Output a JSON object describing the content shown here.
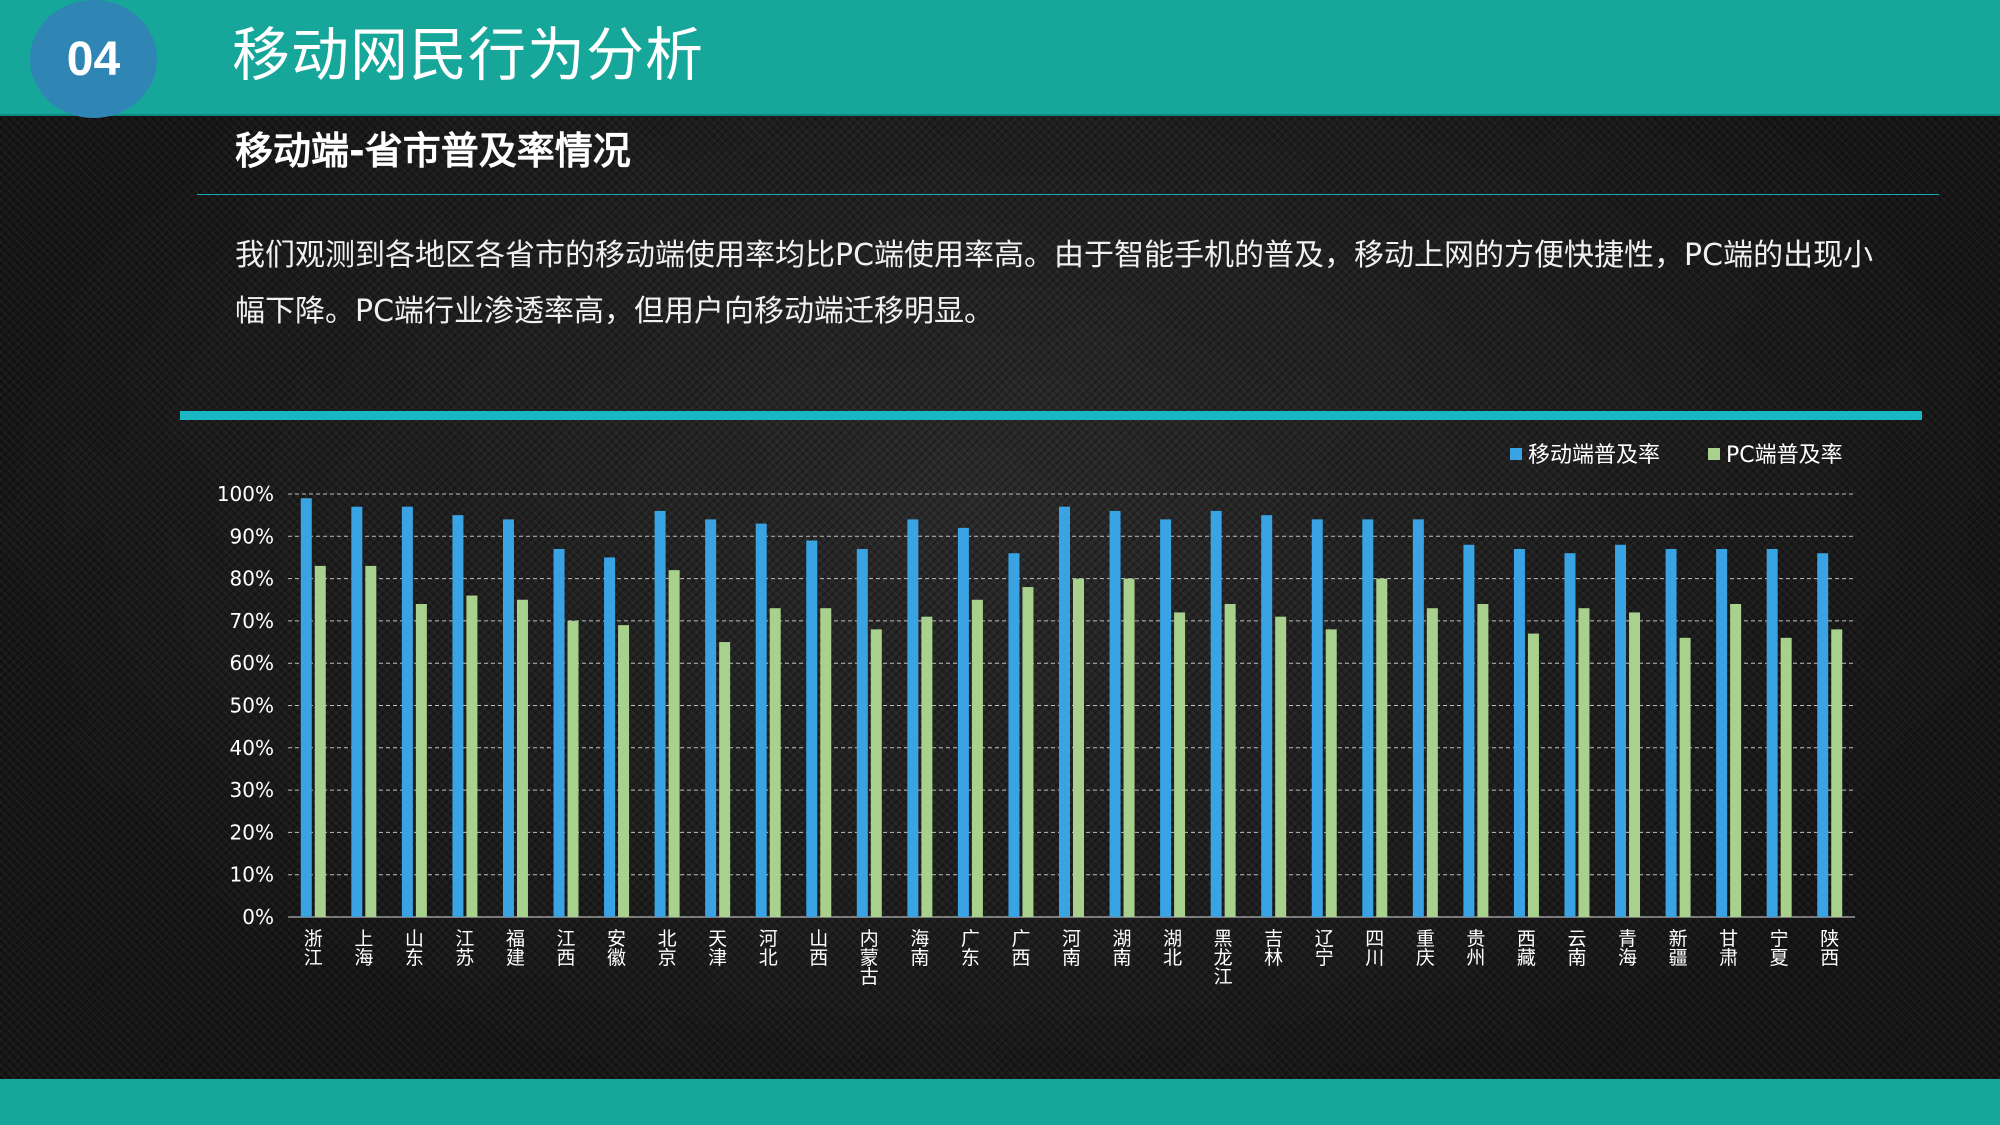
{
  "header": {
    "section_number": "04",
    "title": "移动网民行为分析"
  },
  "subtitle": "移动端-省市普及率情况",
  "description": "我们观测到各地区各省市的移动端使用率均比PC端使用率高。由于智能手机的普及，移动上网的方便快捷性，PC端的出现小幅下降。PC端行业渗透率高，但用户向移动端迁移明显。",
  "colors": {
    "brand_teal": "#16a69a",
    "badge_blue": "#2f86b4",
    "accent_cyan": "#19b6c3",
    "mobile_series": "#3aa3e3",
    "pc_series": "#a9d18e"
  },
  "chart_data": {
    "type": "bar",
    "categories": [
      "浙江",
      "上海",
      "山东",
      "江苏",
      "福建",
      "江西",
      "安徽",
      "北京",
      "天津",
      "河北",
      "山西",
      "内蒙古",
      "海南",
      "广东",
      "广西",
      "河南",
      "湖南",
      "湖北",
      "黑龙江",
      "吉林",
      "辽宁",
      "四川",
      "重庆",
      "贵州",
      "西藏",
      "云南",
      "青海",
      "新疆",
      "甘肃",
      "宁夏",
      "陕西"
    ],
    "series": [
      {
        "name": "移动端普及率",
        "color": "#3aa3e3",
        "values": [
          99,
          97,
          97,
          95,
          94,
          87,
          85,
          96,
          94,
          93,
          89,
          87,
          94,
          92,
          86,
          97,
          96,
          94,
          96,
          95,
          94,
          94,
          94,
          88,
          87,
          86,
          88,
          87,
          87,
          87,
          86
        ]
      },
      {
        "name": "PC端普及率",
        "color": "#a9d18e",
        "values": [
          83,
          83,
          74,
          76,
          75,
          70,
          69,
          82,
          65,
          73,
          73,
          68,
          71,
          75,
          78,
          80,
          80,
          72,
          74,
          71,
          68,
          80,
          73,
          74,
          67,
          73,
          72,
          66,
          74,
          66,
          68
        ]
      }
    ],
    "ylim": [
      0,
      100
    ],
    "ytick_labels": [
      "0%",
      "10%",
      "20%",
      "30%",
      "40%",
      "50%",
      "60%",
      "70%",
      "80%",
      "90%",
      "100%"
    ],
    "grid": true,
    "legend_position": "top-right"
  }
}
